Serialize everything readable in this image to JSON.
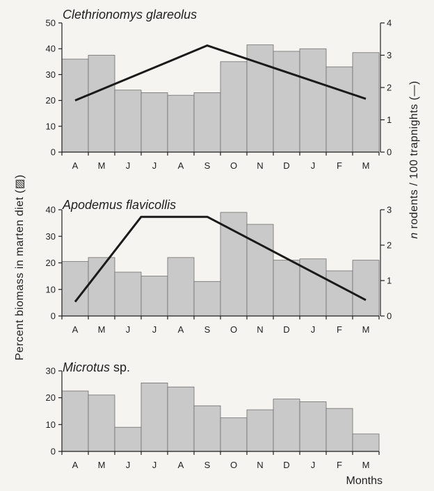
{
  "chart_data": {
    "type": "bar",
    "months": [
      "A",
      "M",
      "J",
      "J",
      "A",
      "S",
      "O",
      "N",
      "D",
      "J",
      "F",
      "M"
    ],
    "xlabel": "Months",
    "ylabel_left": "Percent biomass in marten diet (▨)",
    "ylabel_right_n": "n",
    "ylabel_right": "rodents / 100 trapnights (—)",
    "bar_color": "#c9c9c9",
    "line_color": "#1a1a1a",
    "panels": [
      {
        "title": "Clethrionomys glareolus",
        "title_species_italic": true,
        "ylim": [
          0,
          50
        ],
        "yticks": [
          "0",
          "10",
          "20",
          "30",
          "40",
          "50"
        ],
        "ylim_right": [
          0,
          4
        ],
        "yticks_right": [
          "0",
          "1",
          "2",
          "3",
          "4"
        ],
        "bar_values": [
          36,
          37.5,
          24,
          23,
          22,
          23,
          35,
          41.5,
          39,
          40,
          33,
          38.5
        ],
        "line": {
          "months": [
            0,
            5,
            11
          ],
          "values": [
            1.6,
            3.3,
            1.65
          ]
        }
      },
      {
        "title": "Apodemus flavicollis",
        "title_species_italic": true,
        "ylim": [
          0,
          40
        ],
        "yticks": [
          "0",
          "10",
          "20",
          "30",
          "40"
        ],
        "ylim_right": [
          0,
          3
        ],
        "yticks_right": [
          "0",
          "1",
          "2",
          "3"
        ],
        "bar_values": [
          20.5,
          22,
          16.5,
          15,
          22,
          13,
          39,
          34.5,
          21,
          21.5,
          17,
          21
        ],
        "line": {
          "months": [
            0,
            2.5,
            5,
            11
          ],
          "values": [
            0.4,
            2.8,
            2.8,
            0.45
          ]
        }
      },
      {
        "title": "Microtus",
        "title_suffix": "sp.",
        "title_species_italic": true,
        "ylim": [
          0,
          30
        ],
        "yticks": [
          "0",
          "10",
          "20",
          "30"
        ],
        "bar_values": [
          22.5,
          21,
          9,
          25.5,
          24,
          17,
          12.5,
          15.5,
          19.5,
          18.5,
          16,
          6.5
        ],
        "line": null
      }
    ]
  }
}
